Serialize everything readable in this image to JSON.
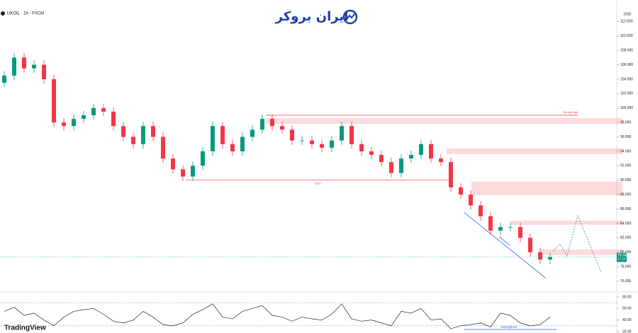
{
  "header": {
    "symbol": "UKOIL · 1h · FXCM",
    "brand": "ایران بروکر",
    "currency": "USD",
    "platform": "TradingView"
  },
  "chart_data": [
    {
      "type": "candlestick",
      "up_color": "#089981",
      "down_color": "#f23645",
      "open": [
        103.5,
        104.5,
        107,
        105.5,
        106,
        104,
        98,
        97.5,
        98.5,
        99,
        100,
        99.5,
        97.5,
        96,
        95,
        97.5,
        96,
        93,
        91.5,
        90.5,
        92,
        94,
        97.5,
        95,
        94,
        96,
        97,
        98.5,
        97.5,
        97,
        95.5,
        95.5,
        95,
        94.5,
        95.5,
        97.5,
        95,
        94,
        93.5,
        92.5,
        91,
        93,
        93.5,
        95,
        93,
        92.5,
        89,
        88,
        86.5,
        85,
        83,
        83.5,
        83.5,
        82,
        80,
        79
      ],
      "high": [
        105.1,
        107.6,
        107.6,
        106.6,
        106.6,
        104.6,
        98.6,
        99.1,
        99.6,
        100.6,
        100.6,
        100.1,
        98.1,
        96.6,
        98.1,
        98.1,
        96.6,
        93.6,
        92.1,
        92.6,
        94.6,
        98.1,
        98.1,
        95.6,
        96.6,
        97.6,
        99.1,
        99.1,
        98.1,
        97.6,
        96.1,
        96.1,
        95.6,
        96.1,
        98.1,
        98.1,
        95.6,
        94.6,
        94.1,
        93.1,
        93.6,
        94.1,
        95.6,
        95.6,
        93.6,
        93.1,
        89.6,
        88.6,
        87.1,
        85.6,
        84.1,
        84.1,
        84.1,
        82.6,
        80.6,
        79.94
      ],
      "low": [
        102.9,
        103.9,
        104.9,
        104.9,
        103.4,
        97.4,
        96.9,
        96.9,
        97.9,
        98.4,
        98.9,
        96.9,
        95.4,
        94.4,
        94.4,
        95.4,
        92.4,
        90.9,
        89.9,
        89.9,
        91.4,
        93.4,
        94.4,
        93.4,
        93.4,
        95.4,
        96.4,
        96.9,
        96.4,
        94.9,
        94.9,
        94.4,
        93.9,
        93.9,
        94.9,
        94.4,
        93.4,
        92.9,
        91.9,
        90.4,
        90.4,
        92.4,
        92.9,
        92.4,
        91.9,
        88.4,
        87.4,
        85.9,
        84.4,
        82.4,
        82.4,
        82.9,
        81.4,
        79.4,
        78.4,
        78.4
      ],
      "close": [
        104.5,
        107,
        105.5,
        106,
        104,
        98,
        97.5,
        98.5,
        99,
        100,
        99.5,
        97.5,
        96,
        95,
        97.5,
        96,
        93,
        91.5,
        90.5,
        92,
        94,
        97.5,
        95,
        94,
        96,
        97,
        98.5,
        97.5,
        97,
        95.5,
        95.5,
        95,
        94.5,
        95.5,
        97.5,
        95,
        94,
        93.5,
        92.5,
        91,
        93,
        93.5,
        95,
        93,
        92.5,
        89,
        88,
        86.5,
        85,
        83,
        83.5,
        83.5,
        82,
        80,
        79,
        79.34
      ],
      "ylim": [
        74,
        114
      ],
      "yticks": [
        {
          "value": 76,
          "label": "76.000"
        },
        {
          "value": 78,
          "label": "78.000"
        },
        {
          "value": 80,
          "label": "80.000"
        },
        {
          "value": 82,
          "label": "82.000"
        },
        {
          "value": 84,
          "label": "84.000"
        },
        {
          "value": 86,
          "label": "86.000"
        },
        {
          "value": 88,
          "label": "88.000"
        },
        {
          "value": 90,
          "label": "90.000"
        },
        {
          "value": 92,
          "label": "92.000"
        },
        {
          "value": 94,
          "label": "94.000"
        },
        {
          "value": 96,
          "label": "96.000"
        },
        {
          "value": 98,
          "label": "98.000"
        },
        {
          "value": 100,
          "label": "100.000"
        },
        {
          "value": 102,
          "label": "102.000"
        },
        {
          "value": 104,
          "label": "104.000"
        },
        {
          "value": 106,
          "label": "106.000"
        },
        {
          "value": 108,
          "label": "108.000"
        },
        {
          "value": 110,
          "label": "110.000"
        },
        {
          "value": 112,
          "label": "112.000"
        }
      ],
      "last_price": {
        "value": 79.34,
        "label": "79.340"
      },
      "countdown": "17:13",
      "zones": [
        {
          "from": 97.8,
          "to": 98.6
        },
        {
          "from": 93.6,
          "to": 94.4
        },
        {
          "from": 87.9,
          "to": 89.8
        },
        {
          "from": 83.8,
          "to": 84.4
        },
        {
          "from": 79.6,
          "to": 80.4
        }
      ],
      "levels": [
        {
          "value": 99,
          "label": "Strong High"
        },
        {
          "value": 90,
          "label": "BOS"
        }
      ],
      "trendline": {
        "label": "Divergence",
        "from": 85.5,
        "to": 76.4
      }
    },
    {
      "type": "line",
      "color": "#222222",
      "values": [
        55,
        62,
        48,
        52,
        40,
        30,
        45,
        55,
        58,
        60,
        50,
        38,
        35,
        40,
        55,
        45,
        32,
        30,
        35,
        50,
        58,
        68,
        45,
        42,
        55,
        60,
        65,
        48,
        45,
        38,
        45,
        42,
        40,
        50,
        68,
        42,
        38,
        40,
        35,
        30,
        55,
        52,
        60,
        40,
        42,
        25,
        30,
        32,
        35,
        28,
        52,
        48,
        35,
        30,
        32,
        45
      ],
      "ylim": [
        20,
        80
      ],
      "yticks": [
        {
          "value": 80,
          "label": "80.00"
        },
        {
          "value": 60,
          "label": "60.00"
        },
        {
          "value": 40,
          "label": "40.00"
        },
        {
          "value": 20,
          "label": "20.00"
        }
      ],
      "bands": [
        70,
        30
      ],
      "divergence_label": "Divergence"
    }
  ]
}
